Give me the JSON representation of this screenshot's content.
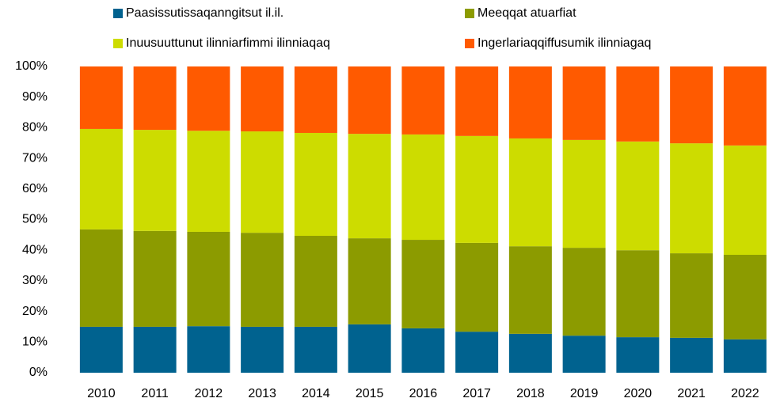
{
  "chart_data": {
    "type": "stacked_bar",
    "categories": [
      "2010",
      "2011",
      "2012",
      "2013",
      "2014",
      "2015",
      "2016",
      "2017",
      "2018",
      "2019",
      "2020",
      "2021",
      "2022"
    ],
    "series": [
      {
        "name": "Paasissutissaqanngitsut il.il.",
        "color": "#00628f",
        "values": [
          15,
          15,
          15.2,
          15,
          15,
          15.8,
          14.5,
          13.4,
          12.7,
          12.1,
          11.6,
          11.4,
          10.9
        ]
      },
      {
        "name": "Meeqqat atuarfiat",
        "color": "#8c9b00",
        "values": [
          31.8,
          31.3,
          30.8,
          30.7,
          29.7,
          28.1,
          28.9,
          29,
          28.6,
          28.7,
          28.4,
          27.6,
          27.6
        ]
      },
      {
        "name": "Inuusuuttunut ilinniarfimmi ilinniaqaq",
        "color": "#cddc00",
        "values": [
          32.8,
          33,
          33,
          33.1,
          33.6,
          34.1,
          34.4,
          34.9,
          35.2,
          35.2,
          35.5,
          35.9,
          35.7
        ]
      },
      {
        "name": "Ingerlariaqqiffusumik ilinniagaq",
        "color": "#ff5a00",
        "values": [
          20.4,
          20.7,
          21,
          21.2,
          21.7,
          22,
          22.2,
          22.7,
          23.5,
          24,
          24.5,
          25.1,
          25.8
        ]
      }
    ],
    "ylim": [
      0,
      100
    ],
    "yticks": [
      {
        "value": 0,
        "label": "0%"
      },
      {
        "value": 10,
        "label": "10%"
      },
      {
        "value": 20,
        "label": "20%"
      },
      {
        "value": 30,
        "label": "30%"
      },
      {
        "value": 40,
        "label": "40%"
      },
      {
        "value": 50,
        "label": "50%"
      },
      {
        "value": 60,
        "label": "60%"
      },
      {
        "value": 70,
        "label": "70%"
      },
      {
        "value": 80,
        "label": "80%"
      },
      {
        "value": 90,
        "label": "90%"
      },
      {
        "value": 100,
        "label": "100%"
      }
    ],
    "legend": "top"
  }
}
